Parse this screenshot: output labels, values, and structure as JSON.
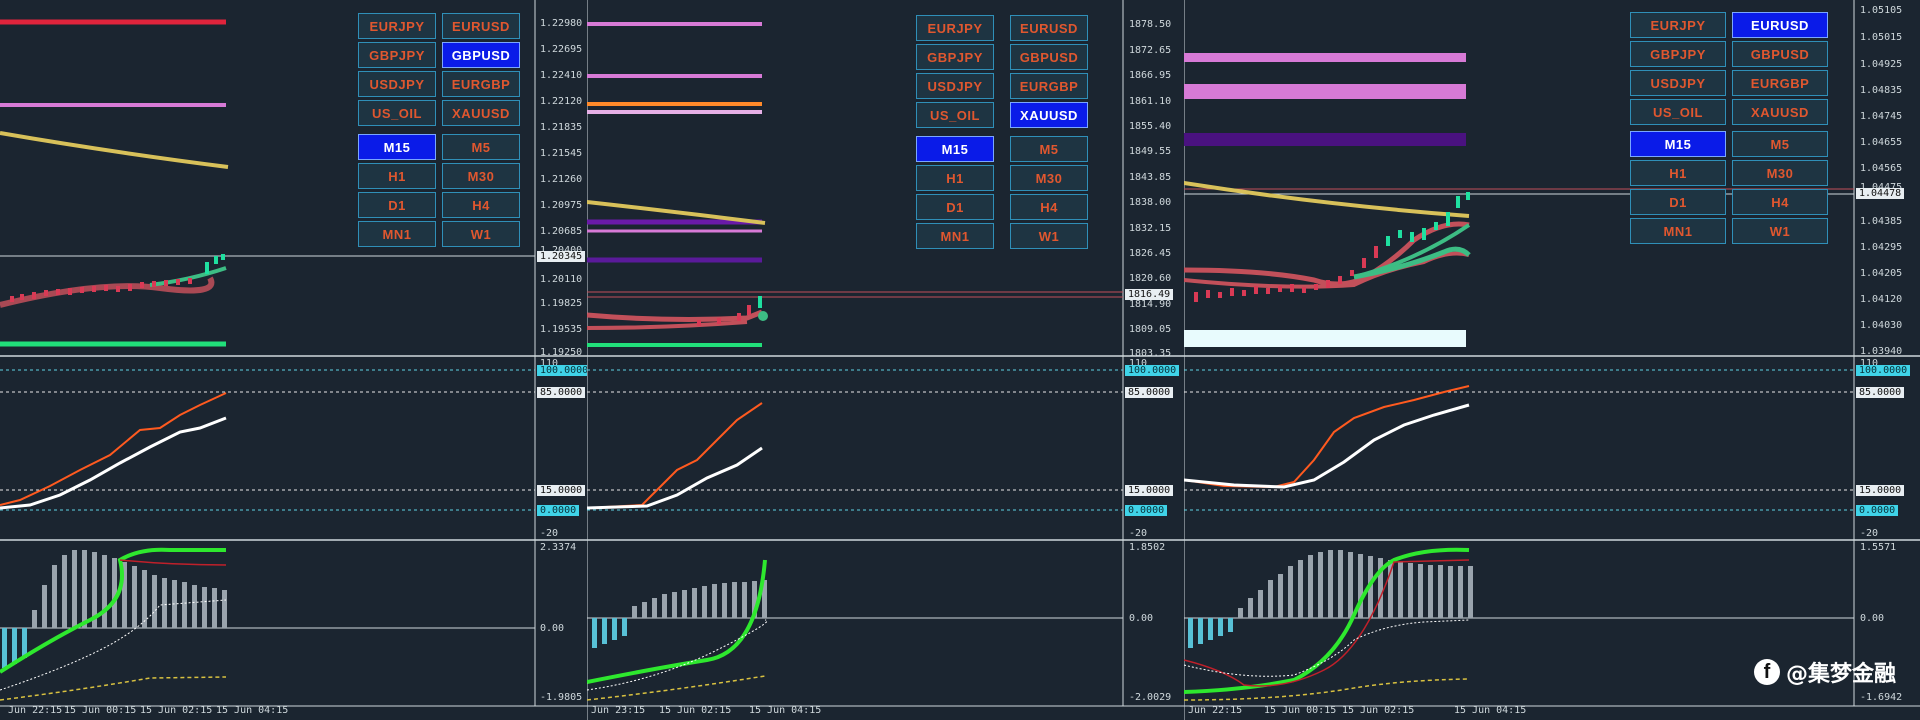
{
  "panels": [
    {
      "buttons": {
        "symbols": [
          "EURJPY",
          "EURUSD",
          "GBPJPY",
          "GBPUSD",
          "USDJPY",
          "EURGBP",
          "US_OIL",
          "XAUUSD"
        ],
        "active_symbol": "GBPUSD",
        "timeframes": [
          "M15",
          "M5",
          "H1",
          "M30",
          "D1",
          "H4",
          "MN1",
          "W1"
        ],
        "active_timeframe": "M15"
      },
      "price_axis": [
        "1.22980",
        "1.22695",
        "1.22410",
        "1.22120",
        "1.21835",
        "1.21545",
        "1.21260",
        "1.20975",
        "1.20685",
        "1.20400",
        "1.20110",
        "1.19825",
        "1.19535",
        "1.19250"
      ],
      "price_tag": "1.20345",
      "rsi_axis": {
        "top": "110",
        "bottom": "-20"
      },
      "rsi_levels": {
        "l100": "100.0000",
        "l85": "85.0000",
        "l15": "15.0000",
        "l0": "0.0000"
      },
      "macd_axis": {
        "top": "2.3374",
        "zero": "0.00",
        "bottom": "-1.9805"
      },
      "times": [
        "Jun 22:15",
        "15 Jun 00:15",
        "15 Jun 02:15",
        "15 Jun 04:15"
      ]
    },
    {
      "buttons": {
        "symbols": [
          "EURJPY",
          "EURUSD",
          "GBPJPY",
          "GBPUSD",
          "USDJPY",
          "EURGBP",
          "US_OIL",
          "XAUUSD"
        ],
        "active_symbol": "XAUUSD",
        "timeframes": [
          "M15",
          "M5",
          "H1",
          "M30",
          "D1",
          "H4",
          "MN1",
          "W1"
        ],
        "active_timeframe": "M15"
      },
      "price_axis": [
        "1878.50",
        "1872.65",
        "1866.95",
        "1861.10",
        "1855.40",
        "1849.55",
        "1843.85",
        "1838.00",
        "1832.15",
        "1826.45",
        "1820.60",
        "1814.90",
        "1809.05",
        "1803.35"
      ],
      "price_tag": "1816.49",
      "rsi_axis": {
        "top": "110",
        "bottom": "-20"
      },
      "rsi_levels": {
        "l100": "100.0000",
        "l85": "85.0000",
        "l15": "15.0000",
        "l0": "0.0000"
      },
      "macd_axis": {
        "top": "1.8502",
        "zero": "0.00",
        "bottom": "-2.0029"
      },
      "times": [
        "Jun 23:15",
        "15 Jun 02:15",
        "15 Jun 04:15"
      ]
    },
    {
      "buttons": {
        "symbols": [
          "EURJPY",
          "EURUSD",
          "GBPJPY",
          "GBPUSD",
          "USDJPY",
          "EURGBP",
          "US_OIL",
          "XAUUSD"
        ],
        "active_symbol": "EURUSD",
        "timeframes": [
          "M15",
          "M5",
          "H1",
          "M30",
          "D1",
          "H4",
          "MN1",
          "W1"
        ],
        "active_timeframe": "M15"
      },
      "price_axis": [
        "1.05105",
        "1.05015",
        "1.04925",
        "1.04835",
        "1.04745",
        "1.04655",
        "1.04565",
        "1.04475",
        "1.04385",
        "1.04295",
        "1.04205",
        "1.04120",
        "1.04030",
        "1.03940"
      ],
      "price_tag": "1.04478",
      "rsi_axis": {
        "top": "110",
        "bottom": "-20"
      },
      "rsi_levels": {
        "l100": "100.0000",
        "l85": "85.0000",
        "l15": "15.0000",
        "l0": "0.0000"
      },
      "macd_axis": {
        "top": "1.5571",
        "zero": "0.00",
        "bottom": "-1.6942"
      },
      "times": [
        "Jun 22:15",
        "15 Jun 00:15",
        "15 Jun 02:15",
        "15 Jun 04:15"
      ]
    }
  ],
  "watermark": {
    "icon": "facebook-icon",
    "text": "@集梦金融"
  },
  "colors": {
    "background": "#1b2530",
    "button_fg": "#e0572f",
    "button_active": "#0a1be8",
    "rsi_fast": "#ff5a1f",
    "rsi_slow": "#ffffff",
    "macd_signal": "#2ee82e"
  }
}
